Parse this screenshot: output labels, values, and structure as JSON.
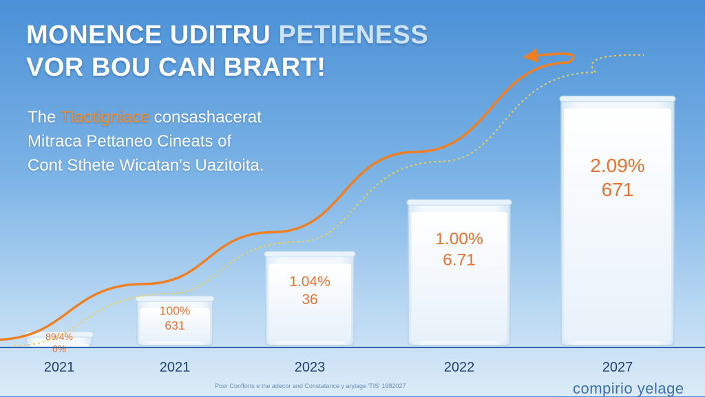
{
  "header": {
    "title_line1_a": "MONENCE UDITRU ",
    "title_line1_b": "PETIENESS",
    "title_line2": "VOR BOU CAN BRART!",
    "subtitle_line1_a": "The ",
    "subtitle_line1_accent": "Tlaotigniace",
    "subtitle_line1_b": " consashacerat",
    "subtitle_line2": "Mitraca Pettaneo Cineats of",
    "subtitle_line3": "Cont Sthete Wicatan's Uazitoita."
  },
  "footer": {
    "footnote": "Pour Confforts e the adecor and Constatance y arylage 'TIS' 1982027",
    "brand": "compirio yelage"
  },
  "colors": {
    "trend_line": "#f07f22",
    "dotted_line": "#f2d04a",
    "label_text": "#e8702a",
    "baseline": "#2f63ad"
  },
  "chart_data": {
    "type": "bar",
    "categories": [
      "2021",
      "2021",
      "2023",
      "2022",
      "2027"
    ],
    "values": [
      5,
      25,
      50,
      79,
      137
    ],
    "data_labels": [
      [
        "89/4%",
        "6%"
      ],
      [
        "100%",
        "631"
      ],
      [
        "1.04%",
        "36"
      ],
      [
        "1.00%",
        "6.71"
      ],
      [
        "2.09%",
        "671"
      ]
    ],
    "trend": [
      5,
      24,
      53,
      98,
      148
    ],
    "ylim": [
      0,
      160
    ],
    "grid": false,
    "legend": "none",
    "xlabel": "",
    "ylabel": ""
  }
}
